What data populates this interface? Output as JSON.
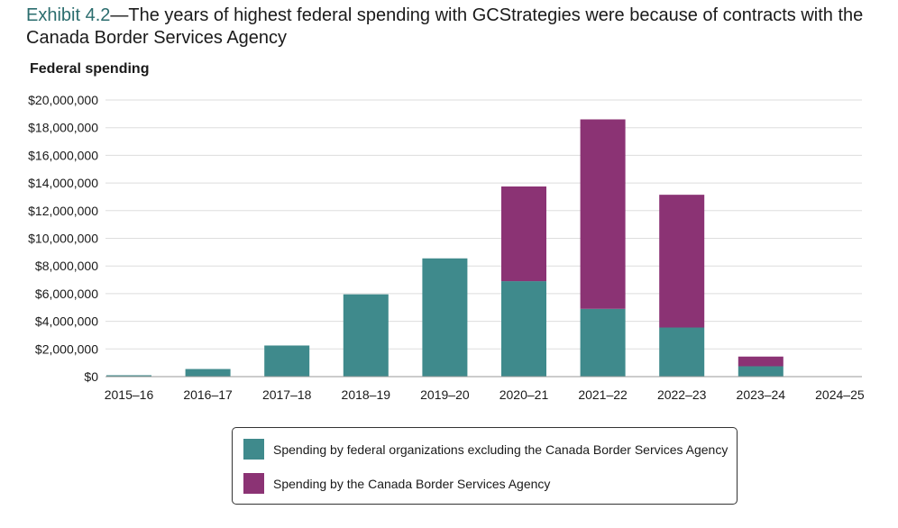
{
  "title": {
    "exhibit": "Exhibit 4.2",
    "text": "—The years of highest federal spending with GCStrategies were because of contracts with the Canada Border Services Agency"
  },
  "colors": {
    "other": "#3f8a8c",
    "cbsa": "#8b3374",
    "grid": "#dddddd",
    "axis": "#999999"
  },
  "chart_data": {
    "type": "bar",
    "stacked": true,
    "ylabel": "Federal spending",
    "xlabel": "",
    "ylim": [
      0,
      20000000
    ],
    "ytick_values": [
      0,
      2000000,
      4000000,
      6000000,
      8000000,
      10000000,
      12000000,
      14000000,
      16000000,
      18000000,
      20000000
    ],
    "ytick_labels": [
      "$0",
      "$2,000,000",
      "$4,000,000",
      "$6,000,000",
      "$8,000,000",
      "$10,000,000",
      "$12,000,000",
      "$14,000,000",
      "$16,000,000",
      "$18,000,000",
      "$20,000,000"
    ],
    "categories": [
      "2015–16",
      "2016–17",
      "2017–18",
      "2018–19",
      "2019–20",
      "2020–21",
      "2021–22",
      "2022–23",
      "2023–24",
      "2024–25"
    ],
    "series": [
      {
        "name": "Spending by federal organizations excluding the Canada Border Services Agency",
        "color_key": "other",
        "values": [
          100000,
          550000,
          2250000,
          5950000,
          8550000,
          6900000,
          4900000,
          3550000,
          750000,
          0
        ]
      },
      {
        "name": "Spending by the Canada Border Services Agency",
        "color_key": "cbsa",
        "values": [
          0,
          0,
          0,
          0,
          0,
          6850000,
          13700000,
          9600000,
          700000,
          0
        ]
      }
    ],
    "grid": true,
    "legend_position": "bottom"
  }
}
